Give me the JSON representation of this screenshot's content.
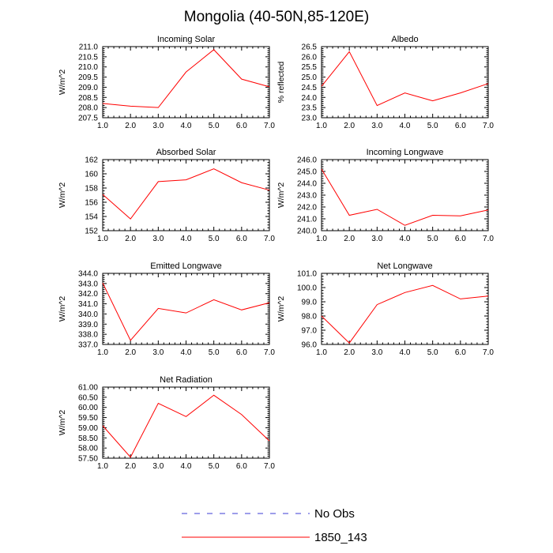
{
  "figure_title": "Mongolia (40-50N,85-120E)",
  "chart_data": [
    {
      "type": "line",
      "title": "Incoming Solar",
      "ylabel": "W/m^2",
      "x": [
        1,
        2,
        3,
        4,
        5,
        6,
        7
      ],
      "xticks": [
        "1.0",
        "2.0",
        "3.0",
        "4.0",
        "5.0",
        "6.0",
        "7.0"
      ],
      "xlim": [
        1,
        7
      ],
      "ylim": [
        207.5,
        211.0
      ],
      "yticks": [
        "207.5",
        "208.0",
        "208.5",
        "209.0",
        "209.5",
        "210.0",
        "210.5",
        "211.0"
      ],
      "series": [
        {
          "name": "1850_143",
          "values": [
            208.2,
            208.07,
            208.0,
            209.75,
            210.85,
            209.4,
            209.02
          ]
        }
      ]
    },
    {
      "type": "line",
      "title": "Albedo",
      "ylabel": "% reflected",
      "x": [
        1,
        2,
        3,
        4,
        5,
        6,
        7
      ],
      "xticks": [
        "1.0",
        "2.0",
        "3.0",
        "4.0",
        "5.0",
        "6.0",
        "7.0"
      ],
      "xlim": [
        1,
        7
      ],
      "ylim": [
        23.0,
        26.5
      ],
      "yticks": [
        "23.0",
        "23.5",
        "24.0",
        "24.5",
        "25.0",
        "25.5",
        "26.0",
        "26.5"
      ],
      "series": [
        {
          "name": "1850_143",
          "values": [
            24.55,
            26.25,
            23.6,
            24.22,
            23.83,
            24.22,
            24.68
          ]
        }
      ]
    },
    {
      "type": "line",
      "title": "Absorbed Solar",
      "ylabel": "W/m^2",
      "x": [
        1,
        2,
        3,
        4,
        5,
        6,
        7
      ],
      "xticks": [
        "1.0",
        "2.0",
        "3.0",
        "4.0",
        "5.0",
        "6.0",
        "7.0"
      ],
      "xlim": [
        1,
        7
      ],
      "ylim": [
        152,
        162
      ],
      "yticks": [
        "152",
        "154",
        "156",
        "158",
        "160",
        "162"
      ],
      "series": [
        {
          "name": "1850_143",
          "values": [
            157.1,
            153.65,
            158.9,
            159.15,
            160.7,
            158.75,
            157.7
          ]
        }
      ]
    },
    {
      "type": "line",
      "title": "Incoming Longwave",
      "ylabel": "W/m^2",
      "x": [
        1,
        2,
        3,
        4,
        5,
        6,
        7
      ],
      "xticks": [
        "1.0",
        "2.0",
        "3.0",
        "4.0",
        "5.0",
        "6.0",
        "7.0"
      ],
      "xlim": [
        1,
        7
      ],
      "ylim": [
        240.0,
        246.0
      ],
      "yticks": [
        "240.0",
        "241.0",
        "242.0",
        "243.0",
        "244.0",
        "245.0",
        "246.0"
      ],
      "series": [
        {
          "name": "1850_143",
          "values": [
            245.2,
            241.3,
            241.8,
            240.45,
            241.3,
            241.25,
            241.75
          ]
        }
      ]
    },
    {
      "type": "line",
      "title": "Emitted Longwave",
      "ylabel": "W/m^2",
      "x": [
        1,
        2,
        3,
        4,
        5,
        6,
        7
      ],
      "xticks": [
        "1.0",
        "2.0",
        "3.0",
        "4.0",
        "5.0",
        "6.0",
        "7.0"
      ],
      "xlim": [
        1,
        7
      ],
      "ylim": [
        337.0,
        344.0
      ],
      "yticks": [
        "337.0",
        "338.0",
        "339.0",
        "340.0",
        "341.0",
        "342.0",
        "343.0",
        "344.0"
      ],
      "series": [
        {
          "name": "1850_143",
          "values": [
            343.05,
            337.4,
            340.55,
            340.1,
            341.4,
            340.4,
            341.1
          ]
        }
      ]
    },
    {
      "type": "line",
      "title": "Net Longwave",
      "ylabel": "W/m^2",
      "x": [
        1,
        2,
        3,
        4,
        5,
        6,
        7
      ],
      "xticks": [
        "1.0",
        "2.0",
        "3.0",
        "4.0",
        "5.0",
        "6.0",
        "7.0"
      ],
      "xlim": [
        1,
        7
      ],
      "ylim": [
        96.0,
        101.0
      ],
      "yticks": [
        "96.0",
        "97.0",
        "98.0",
        "99.0",
        "100.0",
        "101.0"
      ],
      "series": [
        {
          "name": "1850_143",
          "values": [
            98.0,
            96.1,
            98.8,
            99.65,
            100.15,
            99.2,
            99.4
          ]
        }
      ]
    },
    {
      "type": "line",
      "title": "Net Radiation",
      "ylabel": "W/m^2",
      "x": [
        1,
        2,
        3,
        4,
        5,
        6,
        7
      ],
      "xticks": [
        "1.0",
        "2.0",
        "3.0",
        "4.0",
        "5.0",
        "6.0",
        "7.0"
      ],
      "xlim": [
        1,
        7
      ],
      "ylim": [
        57.5,
        61.0
      ],
      "yticks": [
        "57.50",
        "58.00",
        "58.50",
        "59.00",
        "59.50",
        "60.00",
        "60.50",
        "61.00"
      ],
      "series": [
        {
          "name": "1850_143",
          "values": [
            59.1,
            57.55,
            60.2,
            59.55,
            60.6,
            59.65,
            58.35
          ]
        }
      ]
    }
  ],
  "legend": [
    {
      "label": "No Obs",
      "color": "#3b3bd6",
      "style": "dashed"
    },
    {
      "label": "1850_143",
      "color": "#ff0000",
      "style": "solid"
    }
  ],
  "colors": {
    "series": "#ff0000",
    "axis": "#000000"
  }
}
